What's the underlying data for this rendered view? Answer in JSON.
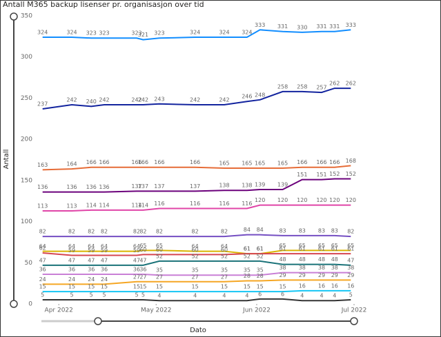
{
  "chart_data": {
    "type": "line",
    "title": "Antall M365 backup lisenser pr. organisasjon over tid",
    "x_label": "Dato",
    "y_label": "Antall",
    "x": [
      -5,
      4,
      10,
      14,
      24,
      26,
      31,
      42,
      51,
      58,
      62,
      69,
      75,
      81,
      85,
      90
    ],
    "xlim": [
      -6,
      91
    ],
    "xticks": [
      {
        "value": 0,
        "label": "Apr 2022"
      },
      {
        "value": 30,
        "label": "May 2022"
      },
      {
        "value": 61,
        "label": "Jun 2022"
      },
      {
        "value": 91,
        "label": "Jul 2022"
      }
    ],
    "ylim": [
      0,
      350
    ],
    "yticks": [
      0,
      50,
      100,
      150,
      200,
      250,
      300,
      350
    ],
    "grid": false,
    "series": [
      {
        "color": "#118dff",
        "values": [
          324,
          324,
          323,
          323,
          323,
          321,
          323,
          324,
          324,
          324,
          333,
          331,
          330,
          331,
          331,
          333
        ]
      },
      {
        "color": "#12239e",
        "values": [
          237,
          242,
          240,
          242,
          242,
          242,
          243,
          242,
          242,
          246,
          248,
          258,
          258,
          257,
          262,
          262
        ]
      },
      {
        "color": "#e66c37",
        "values": [
          163,
          164,
          166,
          166,
          166,
          166,
          166,
          166,
          165,
          165,
          165,
          165,
          166,
          166,
          166,
          168
        ]
      },
      {
        "color": "#6b007b",
        "values": [
          136,
          136,
          136,
          136,
          137,
          137,
          137,
          137,
          138,
          138,
          139,
          139,
          151,
          151,
          152,
          152
        ]
      },
      {
        "color": "#e044a7",
        "values": [
          113,
          113,
          114,
          114,
          114,
          114,
          116,
          116,
          116,
          116,
          120,
          120,
          120,
          120,
          120,
          120
        ]
      },
      {
        "color": "#744ec2",
        "values": [
          82,
          82,
          82,
          82,
          82,
          82,
          82,
          82,
          82,
          84,
          84,
          83,
          83,
          83,
          83,
          82
        ]
      },
      {
        "color": "#d9b300",
        "values": [
          64,
          64,
          64,
          64,
          64,
          65,
          65,
          64,
          64,
          61,
          61,
          65,
          65,
          65,
          65,
          65
        ]
      },
      {
        "color": "#d64550",
        "values": [
          62,
          59,
          59,
          59,
          59,
          60,
          60,
          60,
          60,
          61,
          61,
          61,
          61,
          61,
          61,
          61
        ]
      },
      {
        "color": "#197278",
        "values": [
          47,
          47,
          47,
          47,
          47,
          47,
          52,
          52,
          52,
          52,
          52,
          48,
          48,
          48,
          48,
          47
        ]
      },
      {
        "color": "#c97fd6",
        "values": [
          36,
          36,
          36,
          36,
          36,
          36,
          35,
          35,
          35,
          35,
          35,
          38,
          38,
          38,
          38,
          38
        ]
      },
      {
        "color": "#f5a623",
        "values": [
          24,
          24,
          24,
          24,
          27,
          27,
          27,
          27,
          27,
          28,
          28,
          29,
          29,
          29,
          29,
          29
        ]
      },
      {
        "color": "#15c6f4",
        "values": [
          15,
          15,
          15,
          15,
          15,
          15,
          15,
          15,
          15,
          15,
          15,
          15,
          16,
          16,
          16,
          16
        ]
      },
      {
        "color": "#333333",
        "values": [
          5,
          5,
          5,
          5,
          5,
          5,
          4,
          4,
          4,
          4,
          6,
          6,
          4,
          4,
          4,
          5
        ]
      }
    ]
  }
}
